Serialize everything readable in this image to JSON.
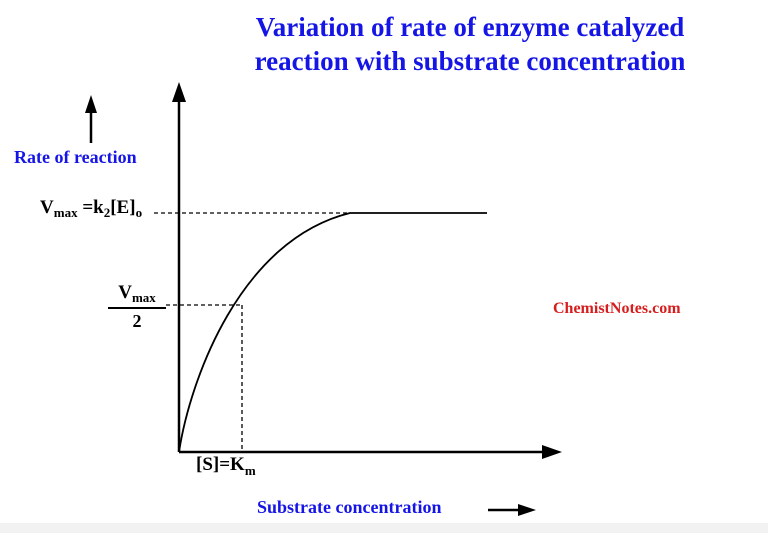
{
  "title": {
    "line1": "Variation of rate of enzyme catalyzed",
    "line2": "reaction with substrate concentration"
  },
  "y_axis_label": "Rate of reaction",
  "x_axis_label": "Substrate concentration",
  "vmax_label": {
    "v": "V",
    "sub_max": "max",
    "rest": "=k",
    "sub_2": "2",
    "bracket": "[E]",
    "sub_o": "o"
  },
  "half_vmax_label": {
    "v": "V",
    "sub_max": "max",
    "denominator": "2"
  },
  "km_label": {
    "s": "[S]=K",
    "sub_m": "m"
  },
  "watermark": "ChemistNotes.com",
  "colors": {
    "title": "#1515e6",
    "axis_text": "#1515e6",
    "watermark": "#d61e1e",
    "lines": "#000000"
  }
}
